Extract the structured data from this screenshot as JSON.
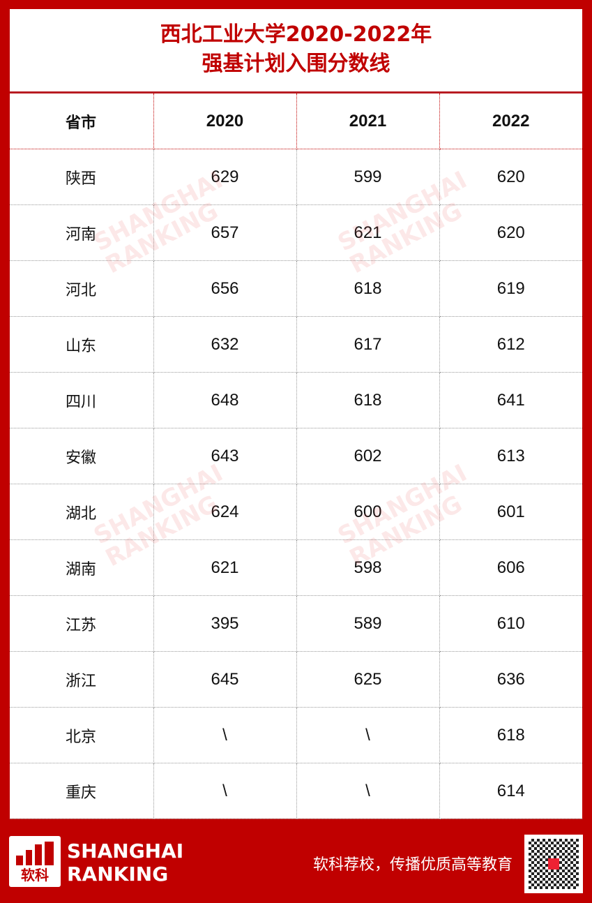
{
  "title": {
    "line1": "西北工业大学2020-2022年",
    "line2": "强基计划入围分数线"
  },
  "table": {
    "headers": [
      "省市",
      "2020",
      "2021",
      "2022"
    ],
    "rows": [
      [
        "陕西",
        "629",
        "599",
        "620"
      ],
      [
        "河南",
        "657",
        "621",
        "620"
      ],
      [
        "河北",
        "656",
        "618",
        "619"
      ],
      [
        "山东",
        "632",
        "617",
        "612"
      ],
      [
        "四川",
        "648",
        "618",
        "641"
      ],
      [
        "安徽",
        "643",
        "602",
        "613"
      ],
      [
        "湖北",
        "624",
        "600",
        "601"
      ],
      [
        "湖南",
        "621",
        "598",
        "606"
      ],
      [
        "江苏",
        "395",
        "589",
        "610"
      ],
      [
        "浙江",
        "645",
        "625",
        "636"
      ],
      [
        "北京",
        "\\",
        "\\",
        "618"
      ],
      [
        "重庆",
        "\\",
        "\\",
        "614"
      ]
    ]
  },
  "watermark": {
    "line1": "SHANGHAI",
    "line2": "RANKING"
  },
  "footer": {
    "logo_cn": "软科",
    "brand_line1": "SHANGHAI",
    "brand_line2": "RANKING",
    "slogan": "软科荐校，传播优质高等教育"
  },
  "colors": {
    "brand_red": "#c00000"
  }
}
